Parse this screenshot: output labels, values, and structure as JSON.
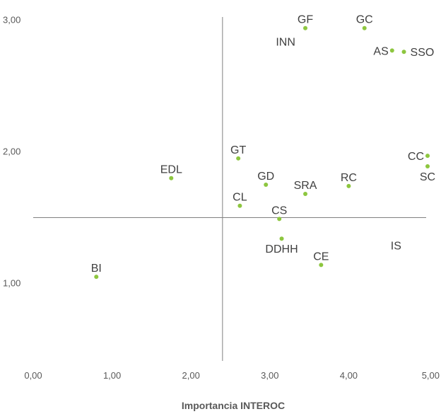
{
  "chart_data": {
    "type": "scatter",
    "title": "",
    "xlabel": "Importancia INTEROC",
    "ylabel": "",
    "xlim": [
      0,
      5
    ],
    "ylim": [
      0.4,
      3.1
    ],
    "x_ticks": [
      "0,00",
      "1,00",
      "2,00",
      "3,00",
      "4,00",
      "5,00"
    ],
    "y_ticks": [
      "1,00",
      "2,00",
      "3,00"
    ],
    "y_tick_values": [
      1,
      2,
      3
    ],
    "cross_lines": {
      "x": 2.4,
      "y": 1.5
    },
    "point_color": "#8dc63f",
    "grid": false,
    "points": [
      {
        "label": "GF",
        "x": 3.45,
        "y": 2.94,
        "label_pos": "above"
      },
      {
        "label": "GC",
        "x": 4.2,
        "y": 2.94,
        "label_pos": "above"
      },
      {
        "label": "INN",
        "x": null,
        "y": null,
        "label_x": 3.2,
        "label_y": 2.84
      },
      {
        "label": "AS",
        "x": 4.55,
        "y": 2.77,
        "label_pos": "left"
      },
      {
        "label": "SSO",
        "x": 4.7,
        "y": 2.76,
        "label_pos": "right"
      },
      {
        "label": "GT",
        "x": 2.6,
        "y": 1.95,
        "label_pos": "above"
      },
      {
        "label": "CC",
        "x": 5.0,
        "y": 1.97,
        "label_pos": "left"
      },
      {
        "label": "SC",
        "x": 5.0,
        "y": 1.89,
        "label_pos": "below"
      },
      {
        "label": "EDL",
        "x": 1.75,
        "y": 1.8,
        "label_pos": "above"
      },
      {
        "label": "GD",
        "x": 2.95,
        "y": 1.75,
        "label_pos": "above"
      },
      {
        "label": "RC",
        "x": 4.0,
        "y": 1.74,
        "label_pos": "above"
      },
      {
        "label": "SRA",
        "x": 3.45,
        "y": 1.68,
        "label_pos": "above"
      },
      {
        "label": "CL",
        "x": 2.62,
        "y": 1.59,
        "label_pos": "above"
      },
      {
        "label": "CS",
        "x": 3.12,
        "y": 1.49,
        "label_pos": "above"
      },
      {
        "label": "DDHH",
        "x": 3.15,
        "y": 1.34,
        "label_pos": "below"
      },
      {
        "label": "IS",
        "x": null,
        "y": null,
        "label_x": 4.6,
        "label_y": 1.29
      },
      {
        "label": "CE",
        "x": 3.65,
        "y": 1.14,
        "label_pos": "above"
      },
      {
        "label": "BI",
        "x": 0.8,
        "y": 1.05,
        "label_pos": "above"
      }
    ]
  }
}
